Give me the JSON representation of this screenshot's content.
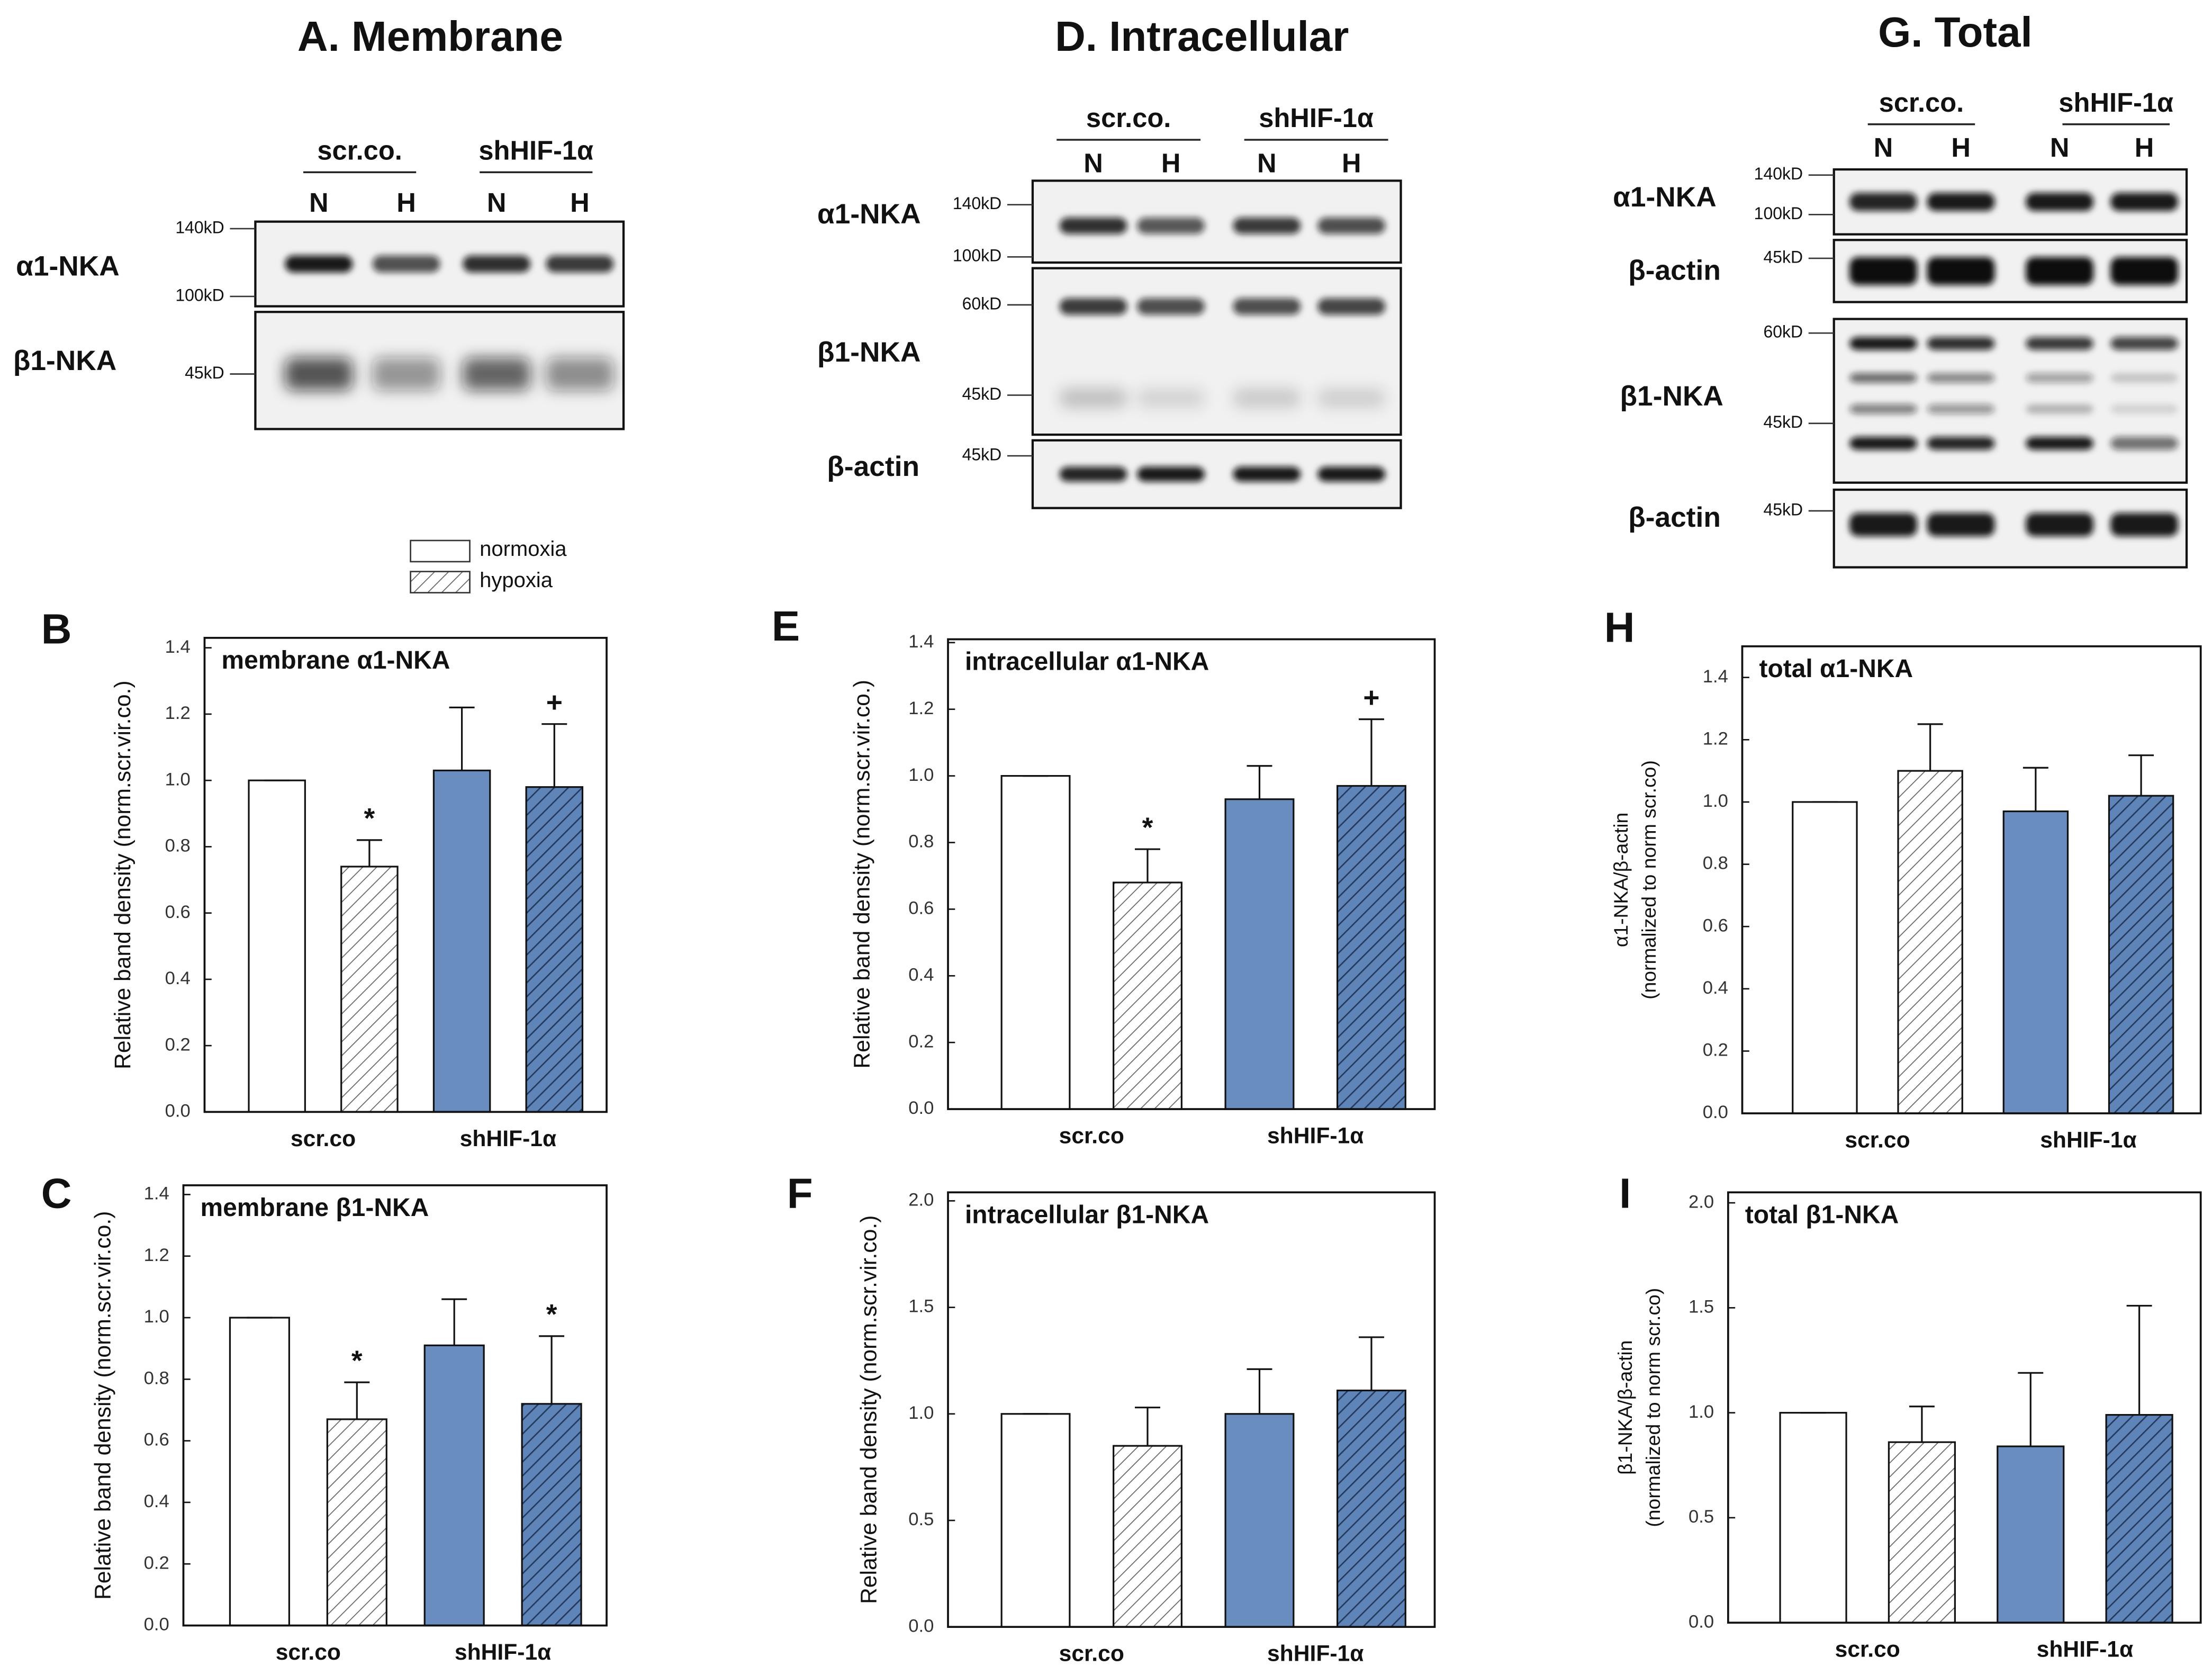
{
  "blots": [
    {
      "title": "A. Membrane",
      "groups": [
        "scr.co.",
        "shHIF-1α"
      ],
      "lanes": [
        "N",
        "H",
        "N",
        "H"
      ],
      "rows": [
        {
          "label": "α1-NKA",
          "markers": [
            "140kD",
            "100kD"
          ]
        },
        {
          "label": "β1-NKA",
          "markers": [
            "45kD"
          ]
        }
      ]
    },
    {
      "title": "D. Intracellular",
      "groups": [
        "scr.co.",
        "shHIF-1α"
      ],
      "lanes": [
        "N",
        "H",
        "N",
        "H"
      ],
      "rows": [
        {
          "label": "α1-NKA",
          "markers": [
            "140kD",
            "100kD"
          ]
        },
        {
          "label": "β1-NKA",
          "markers": [
            "60kD",
            "45kD"
          ]
        },
        {
          "label": "β-actin",
          "markers": [
            "45kD"
          ]
        }
      ]
    },
    {
      "title": "G. Total",
      "groups": [
        "scr.co.",
        "shHIF-1α"
      ],
      "lanes": [
        "N",
        "H",
        "N",
        "H"
      ],
      "rows": [
        {
          "label": "α1-NKA",
          "markers": [
            "140kD",
            "100kD"
          ]
        },
        {
          "label": "β-actin",
          "markers": [
            "45kD"
          ]
        },
        {
          "label": "β1-NKA",
          "markers": [
            "60kD",
            "45kD"
          ]
        },
        {
          "label": "β-actin",
          "markers": [
            "45kD"
          ]
        }
      ]
    }
  ],
  "legend": [
    "normoxia",
    "hypoxia"
  ],
  "chart_data": [
    {
      "type": "bar",
      "panel": "B",
      "title": "membrane α1-NKA",
      "ylabel": [
        "Relative  band density  (norm.scr.vir.co.)"
      ],
      "categories": [
        "scr.co",
        "shHIF-1α"
      ],
      "colors": [
        "#ffffff",
        "#6a8dbf"
      ],
      "series": [
        {
          "values": [
            1.0,
            1.03
          ],
          "errors": [
            0,
            0.19
          ]
        },
        {
          "values": [
            0.74,
            0.98
          ],
          "errors": [
            0.08,
            0.19
          ],
          "annotations": [
            "*",
            "+"
          ]
        }
      ],
      "ylim": [
        0,
        1.43
      ],
      "yticks": [
        {
          "value": 0,
          "label": "0.0"
        },
        {
          "value": 0.2,
          "label": "0.2"
        },
        {
          "value": 0.4,
          "label": "0.4"
        },
        {
          "value": 0.6,
          "label": "0.6"
        },
        {
          "value": 0.8,
          "label": "0.8"
        },
        {
          "value": 1,
          "label": "1.0"
        },
        {
          "value": 1.2,
          "label": "1.2"
        },
        {
          "value": 1.4,
          "label": "1.4"
        }
      ]
    },
    {
      "type": "bar",
      "panel": "C",
      "title": "membrane β1-NKA",
      "ylabel": [
        "Relative  band density  (norm.scr.vir.co.)"
      ],
      "categories": [
        "scr.co",
        "shHIF-1α"
      ],
      "colors": [
        "#ffffff",
        "#6a8dbf"
      ],
      "series": [
        {
          "values": [
            1.0,
            0.91
          ],
          "errors": [
            0,
            0.15
          ]
        },
        {
          "values": [
            0.67,
            0.72
          ],
          "errors": [
            0.12,
            0.22
          ],
          "annotations": [
            "*",
            "*"
          ]
        }
      ],
      "ylim": [
        0,
        1.43
      ],
      "yticks": [
        {
          "value": 0,
          "label": "0.0"
        },
        {
          "value": 0.2,
          "label": "0.2"
        },
        {
          "value": 0.4,
          "label": "0.4"
        },
        {
          "value": 0.6,
          "label": "0.6"
        },
        {
          "value": 0.8,
          "label": "0.8"
        },
        {
          "value": 1,
          "label": "1.0"
        },
        {
          "value": 1.2,
          "label": "1.2"
        },
        {
          "value": 1.4,
          "label": "1.4"
        }
      ]
    },
    {
      "type": "bar",
      "panel": "E",
      "title": "intracellular α1-NKA",
      "ylabel": [
        "Relative  band density  (norm.scr.vir.co.)"
      ],
      "categories": [
        "scr.co",
        "shHIF-1α"
      ],
      "colors": [
        "#ffffff",
        "#6a8dbf"
      ],
      "series": [
        {
          "values": [
            1.0,
            0.93
          ],
          "errors": [
            0,
            0.1
          ]
        },
        {
          "values": [
            0.68,
            0.97
          ],
          "errors": [
            0.1,
            0.2
          ],
          "annotations": [
            "*",
            "+"
          ]
        }
      ],
      "ylim": [
        0,
        1.41
      ],
      "yticks": [
        {
          "value": 0,
          "label": "0.0"
        },
        {
          "value": 0.2,
          "label": "0.2"
        },
        {
          "value": 0.4,
          "label": "0.4"
        },
        {
          "value": 0.6,
          "label": "0.6"
        },
        {
          "value": 0.8,
          "label": "0.8"
        },
        {
          "value": 1,
          "label": "1.0"
        },
        {
          "value": 1.2,
          "label": "1.2"
        },
        {
          "value": 1.4,
          "label": "1.4"
        }
      ]
    },
    {
      "type": "bar",
      "panel": "F",
      "title": "intracellular β1-NKA",
      "ylabel": [
        "Relative  band density  (norm.scr.vir.co.)"
      ],
      "categories": [
        "scr.co",
        "shHIF-1α"
      ],
      "colors": [
        "#ffffff",
        "#6a8dbf"
      ],
      "series": [
        {
          "values": [
            1.0,
            1.0
          ],
          "errors": [
            0,
            0.21
          ]
        },
        {
          "values": [
            0.85,
            1.11
          ],
          "errors": [
            0.18,
            0.25
          ]
        }
      ],
      "ylim": [
        0,
        2.04
      ],
      "yticks": [
        {
          "value": 0,
          "label": "0.0"
        },
        {
          "value": 0.5,
          "label": "0.5"
        },
        {
          "value": 1,
          "label": "1.0"
        },
        {
          "value": 1.5,
          "label": "1.5"
        },
        {
          "value": 2,
          "label": "2.0"
        }
      ]
    },
    {
      "type": "bar",
      "panel": "H",
      "title": "total  α1-NKA",
      "ylabel": [
        "α1-NKA/β-actin",
        "(normalized to norm scr.co)"
      ],
      "categories": [
        "scr.co",
        "shHIF-1α"
      ],
      "colors": [
        "#ffffff",
        "#6a8dbf"
      ],
      "series": [
        {
          "values": [
            1.0,
            0.97
          ],
          "errors": [
            0,
            0.14
          ]
        },
        {
          "values": [
            1.1,
            1.02
          ],
          "errors": [
            0.15,
            0.13
          ]
        }
      ],
      "ylim": [
        0,
        1.5
      ],
      "yticks": [
        {
          "value": 0,
          "label": "0.0"
        },
        {
          "value": 0.2,
          "label": "0.2"
        },
        {
          "value": 0.4,
          "label": "0.4"
        },
        {
          "value": 0.6,
          "label": "0.6"
        },
        {
          "value": 0.8,
          "label": "0.8"
        },
        {
          "value": 1,
          "label": "1.0"
        },
        {
          "value": 1.2,
          "label": "1.2"
        },
        {
          "value": 1.4,
          "label": "1.4"
        }
      ]
    },
    {
      "type": "bar",
      "panel": "I",
      "title": "total  β1-NKA",
      "ylabel": [
        "β1-NKA/β-actin",
        "(normalized to norm scr.co)"
      ],
      "categories": [
        "scr.co",
        "shHIF-1α"
      ],
      "colors": [
        "#ffffff",
        "#6a8dbf"
      ],
      "series": [
        {
          "values": [
            1.0,
            0.84
          ],
          "errors": [
            0,
            0.35
          ]
        },
        {
          "values": [
            0.86,
            0.99
          ],
          "errors": [
            0.17,
            0.52
          ]
        }
      ],
      "ylim": [
        0,
        2.05
      ],
      "yticks": [
        {
          "value": 0,
          "label": "0.0"
        },
        {
          "value": 0.5,
          "label": "0.5"
        },
        {
          "value": 1,
          "label": "1.0"
        },
        {
          "value": 1.5,
          "label": "1.5"
        },
        {
          "value": 2,
          "label": "2.0"
        }
      ]
    }
  ]
}
